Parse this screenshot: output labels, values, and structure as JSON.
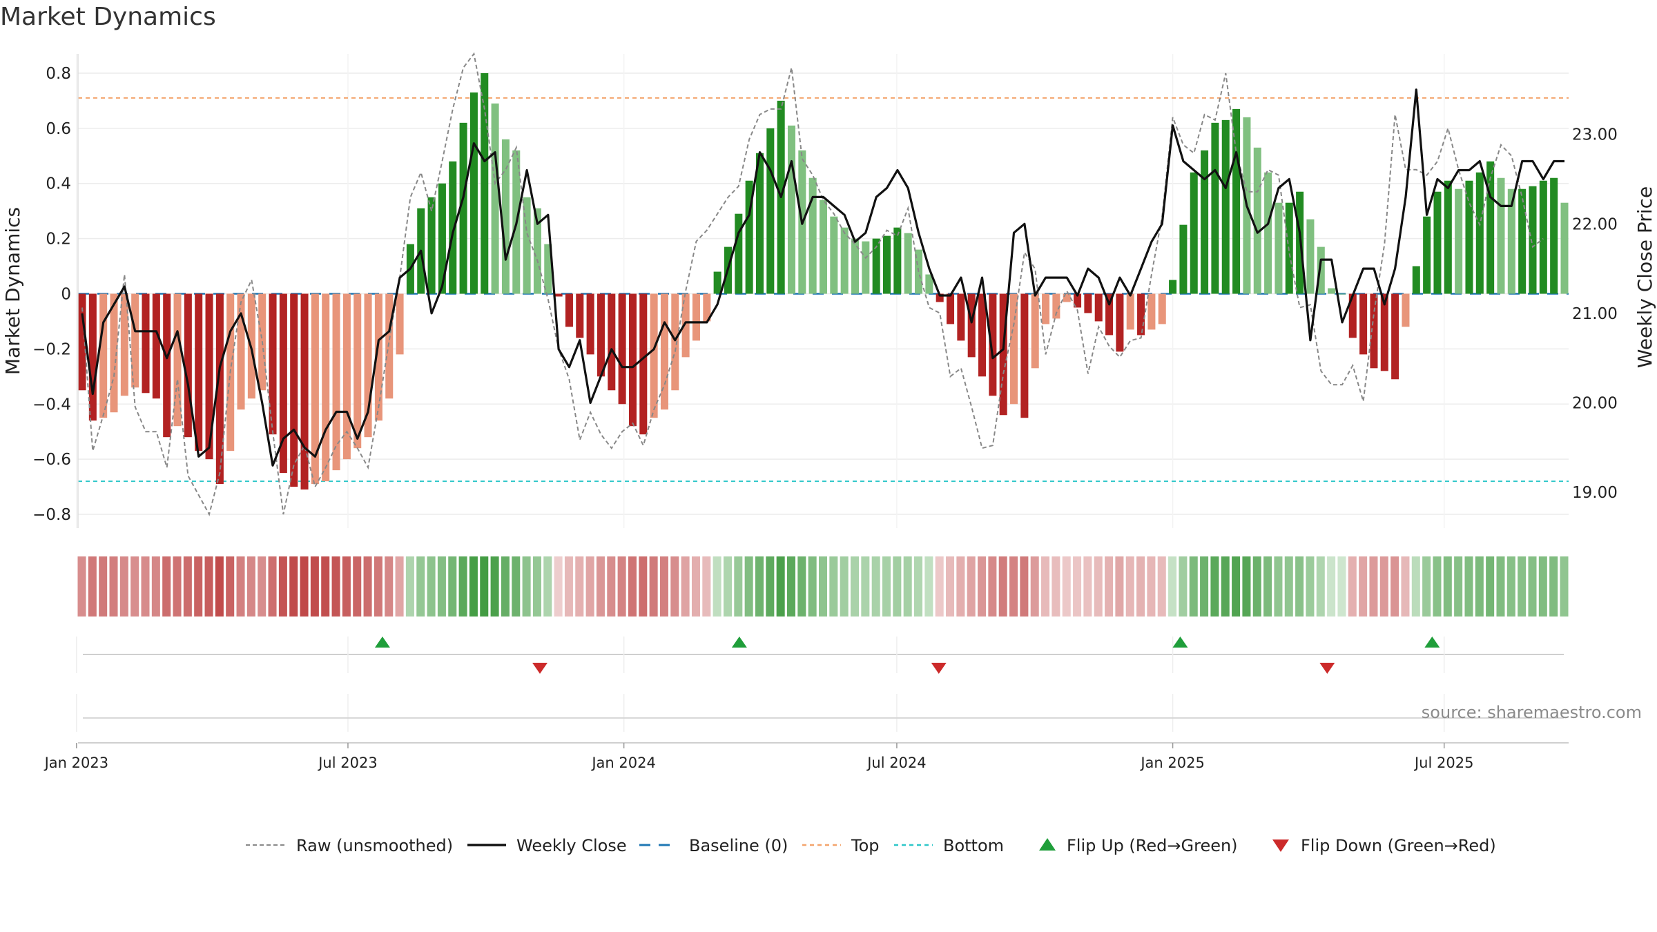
{
  "chart_data": {
    "type": "bar",
    "title": "Market Dynamics",
    "ylabel": "Market Dynamics",
    "y2label": "Weekly Close Price",
    "ylim": [
      -0.85,
      0.87
    ],
    "y2lim": [
      18.6,
      23.9
    ],
    "yticks": [
      "0.8",
      "0.6",
      "0.4",
      "0.2",
      "0",
      "−0.2",
      "−0.4",
      "−0.6",
      "−0.8"
    ],
    "y2ticks": [
      "23.00",
      "22.00",
      "21.00",
      "20.00",
      "19.00"
    ],
    "xticks": [
      "Jan 2023",
      "Jul 2023",
      "Jan 2024",
      "Jul 2024",
      "Jan 2025",
      "Jul 2025"
    ],
    "x_start": "2023-01-02",
    "x_end": "2025-09-22",
    "top_level": 0.71,
    "bottom_level": -0.68,
    "legend": [
      "Raw (unsmoothed)",
      "Weekly Close",
      "Baseline (0)",
      "Top",
      "Bottom",
      "Flip Up (Red→Green)",
      "Flip Down (Green→Red)"
    ],
    "source": "source: sharemaestro.com",
    "values": [
      -0.35,
      -0.46,
      -0.45,
      -0.43,
      -0.37,
      -0.34,
      -0.36,
      -0.38,
      -0.52,
      -0.48,
      -0.52,
      -0.57,
      -0.6,
      -0.69,
      -0.57,
      -0.42,
      -0.38,
      -0.35,
      -0.51,
      -0.65,
      -0.7,
      -0.71,
      -0.69,
      -0.68,
      -0.64,
      -0.6,
      -0.56,
      -0.52,
      -0.46,
      -0.38,
      -0.22,
      0.18,
      0.31,
      0.35,
      0.4,
      0.48,
      0.62,
      0.73,
      0.8,
      0.69,
      0.56,
      0.52,
      0.35,
      0.31,
      0.18,
      -0.01,
      -0.12,
      -0.16,
      -0.22,
      -0.3,
      -0.35,
      -0.4,
      -0.48,
      -0.51,
      -0.45,
      -0.42,
      -0.35,
      -0.23,
      -0.17,
      -0.1,
      0.08,
      0.17,
      0.29,
      0.41,
      0.51,
      0.6,
      0.7,
      0.61,
      0.52,
      0.42,
      0.34,
      0.28,
      0.24,
      0.2,
      0.19,
      0.2,
      0.21,
      0.24,
      0.22,
      0.16,
      0.07,
      -0.03,
      -0.11,
      -0.17,
      -0.23,
      -0.3,
      -0.37,
      -0.44,
      -0.4,
      -0.45,
      -0.27,
      -0.11,
      -0.09,
      -0.03,
      -0.05,
      -0.07,
      -0.1,
      -0.15,
      -0.21,
      -0.13,
      -0.15,
      -0.13,
      -0.11,
      0.05,
      0.25,
      0.44,
      0.52,
      0.62,
      0.63,
      0.67,
      0.64,
      0.53,
      0.44,
      0.33,
      0.33,
      0.37,
      0.27,
      0.17,
      0.02,
      0.0,
      -0.16,
      -0.22,
      -0.27,
      -0.28,
      -0.31,
      -0.12,
      0.1,
      0.28,
      0.37,
      0.41,
      0.38,
      0.41,
      0.44,
      0.48,
      0.42,
      0.38,
      0.38,
      0.39,
      0.41,
      0.42,
      0.33
    ],
    "raw_values": [
      -0.05,
      -0.57,
      -0.44,
      -0.3,
      0.07,
      -0.41,
      -0.5,
      -0.5,
      -0.63,
      -0.31,
      -0.66,
      -0.73,
      -0.8,
      -0.65,
      -0.28,
      -0.03,
      0.05,
      -0.17,
      -0.5,
      -0.8,
      -0.62,
      -0.55,
      -0.7,
      -0.63,
      -0.55,
      -0.5,
      -0.56,
      -0.63,
      -0.41,
      -0.17,
      0.06,
      0.35,
      0.44,
      0.3,
      0.48,
      0.67,
      0.82,
      0.87,
      0.67,
      0.4,
      0.45,
      0.53,
      0.22,
      0.12,
      -0.02,
      -0.2,
      -0.31,
      -0.53,
      -0.43,
      -0.51,
      -0.56,
      -0.5,
      -0.47,
      -0.55,
      -0.42,
      -0.33,
      -0.21,
      0.01,
      0.19,
      0.23,
      0.29,
      0.35,
      0.39,
      0.56,
      0.65,
      0.67,
      0.67,
      0.82,
      0.49,
      0.43,
      0.34,
      0.29,
      0.22,
      0.18,
      0.13,
      0.17,
      0.23,
      0.21,
      0.31,
      0.08,
      -0.05,
      -0.07,
      -0.3,
      -0.27,
      -0.41,
      -0.56,
      -0.55,
      -0.29,
      -0.11,
      0.15,
      0.09,
      -0.22,
      -0.07,
      0.01,
      -0.06,
      -0.29,
      -0.12,
      -0.19,
      -0.23,
      -0.17,
      -0.16,
      0.07,
      0.28,
      0.64,
      0.54,
      0.51,
      0.65,
      0.63,
      0.8,
      0.51,
      0.37,
      0.37,
      0.45,
      0.43,
      0.15,
      -0.05,
      -0.04,
      -0.28,
      -0.33,
      -0.33,
      -0.26,
      -0.39,
      -0.07,
      0.18,
      0.65,
      0.45,
      0.45,
      0.43,
      0.48,
      0.6,
      0.45,
      0.33,
      0.25,
      0.42,
      0.54,
      0.5,
      0.35,
      0.17,
      0.2
    ],
    "close": [
      21.0,
      20.1,
      20.9,
      21.1,
      21.3,
      20.8,
      20.8,
      20.8,
      20.5,
      20.8,
      20.2,
      19.4,
      19.5,
      20.4,
      20.8,
      21.0,
      20.6,
      20.0,
      19.3,
      19.6,
      19.7,
      19.5,
      19.4,
      19.7,
      19.9,
      19.9,
      19.6,
      19.9,
      20.7,
      20.8,
      21.4,
      21.5,
      21.7,
      21.0,
      21.3,
      21.9,
      22.3,
      22.9,
      22.7,
      22.8,
      21.6,
      22.0,
      22.6,
      22.0,
      22.1,
      20.6,
      20.4,
      20.7,
      20.0,
      20.3,
      20.6,
      20.4,
      20.4,
      20.5,
      20.6,
      20.9,
      20.7,
      20.9,
      20.9,
      20.9,
      21.1,
      21.5,
      21.9,
      22.1,
      22.8,
      22.6,
      22.3,
      22.7,
      22.0,
      22.3,
      22.3,
      22.2,
      22.1,
      21.8,
      21.9,
      22.3,
      22.4,
      22.6,
      22.4,
      21.9,
      21.5,
      21.2,
      21.2,
      21.4,
      20.9,
      21.4,
      20.5,
      20.6,
      21.9,
      22.0,
      21.2,
      21.4,
      21.4,
      21.4,
      21.2,
      21.5,
      21.4,
      21.1,
      21.4,
      21.2,
      21.5,
      21.8,
      22.0,
      23.1,
      22.7,
      22.6,
      22.5,
      22.6,
      22.4,
      22.8,
      22.2,
      21.9,
      22.0,
      22.4,
      22.5,
      21.9,
      20.7,
      21.6,
      21.6,
      20.9,
      21.2,
      21.5,
      21.5,
      21.1,
      21.5,
      22.3,
      23.5,
      22.1,
      22.5,
      22.4,
      22.6,
      22.6,
      22.7,
      22.3,
      22.2,
      22.2,
      22.7,
      22.7,
      22.5,
      22.7,
      22.7
    ],
    "flip_up": [
      "2023-07-24",
      "2024-03-18",
      "2025-01-06",
      "2025-06-23"
    ],
    "flip_down": [
      "2023-11-06",
      "2024-07-29",
      "2025-04-14"
    ]
  }
}
